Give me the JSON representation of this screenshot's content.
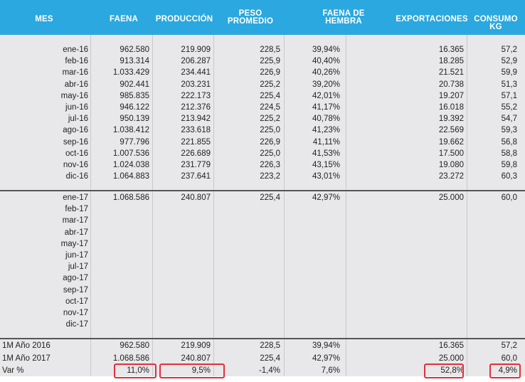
{
  "headers": {
    "mes": "MES",
    "faena": "FAENA",
    "produccion": "PRODUCCIÓN",
    "peso": [
      "PESO",
      "PROMEDIO"
    ],
    "hembra": [
      "FAENA DE",
      "HEMBRA"
    ],
    "exportaciones": "EXPORTACIONES",
    "consumo": [
      "CONSUMO",
      "KG"
    ]
  },
  "rows2016": [
    [
      "ene-16",
      "962.580",
      "219.909",
      "228,5",
      "39,94%",
      "16.365",
      "57,2"
    ],
    [
      "feb-16",
      "913.314",
      "206.287",
      "225,9",
      "40,40%",
      "18.285",
      "52,9"
    ],
    [
      "mar-16",
      "1.033.429",
      "234.441",
      "226,9",
      "40,26%",
      "21.521",
      "59,9"
    ],
    [
      "abr-16",
      "902.441",
      "203.231",
      "225,2",
      "39,20%",
      "20.738",
      "51,3"
    ],
    [
      "may-16",
      "985.835",
      "222.173",
      "225,4",
      "42,01%",
      "19.207",
      "57,1"
    ],
    [
      "jun-16",
      "946.122",
      "212.376",
      "224,5",
      "41,17%",
      "16.018",
      "55,2"
    ],
    [
      "jul-16",
      "950.139",
      "213.942",
      "225,2",
      "40,78%",
      "19.392",
      "54,7"
    ],
    [
      "ago-16",
      "1.038.412",
      "233.618",
      "225,0",
      "41,23%",
      "22.569",
      "59,3"
    ],
    [
      "sep-16",
      "977.796",
      "221.855",
      "226,9",
      "41,11%",
      "19.662",
      "56,8"
    ],
    [
      "oct-16",
      "1.007.536",
      "226.689",
      "225,0",
      "41,53%",
      "17.500",
      "58,8"
    ],
    [
      "nov-16",
      "1.024.038",
      "231.779",
      "226,3",
      "43,15%",
      "19.080",
      "59,8"
    ],
    [
      "dic-16",
      "1.064.883",
      "237.641",
      "223,2",
      "43,01%",
      "23.272",
      "60,3"
    ]
  ],
  "rows2017": [
    [
      "ene-17",
      "1.068.586",
      "240.807",
      "225,4",
      "42,97%",
      "25.000",
      "60,0"
    ],
    [
      "feb-17",
      "",
      "",
      "",
      "",
      "",
      ""
    ],
    [
      "mar-17",
      "",
      "",
      "",
      "",
      "",
      ""
    ],
    [
      "abr-17",
      "",
      "",
      "",
      "",
      "",
      ""
    ],
    [
      "may-17",
      "",
      "",
      "",
      "",
      "",
      ""
    ],
    [
      "jun-17",
      "",
      "",
      "",
      "",
      "",
      ""
    ],
    [
      "jul-17",
      "",
      "",
      "",
      "",
      "",
      ""
    ],
    [
      "ago-17",
      "",
      "",
      "",
      "",
      "",
      ""
    ],
    [
      "sep-17",
      "",
      "",
      "",
      "",
      "",
      ""
    ],
    [
      "oct-17",
      "",
      "",
      "",
      "",
      "",
      ""
    ],
    [
      "nov-17",
      "",
      "",
      "",
      "",
      "",
      ""
    ],
    [
      "dic-17",
      "",
      "",
      "",
      "",
      "",
      ""
    ]
  ],
  "summary": [
    [
      "1M Año 2016",
      "962.580",
      "219.909",
      "228,5",
      "39,94%",
      "16.365",
      "57,2"
    ],
    [
      "1M Año 2017",
      "1.068.586",
      "240.807",
      "225,4",
      "42,97%",
      "25.000",
      "60,0"
    ],
    [
      "Var %",
      "11,0%",
      "9,5%",
      "-1,4%",
      "7,6%",
      "52,8%",
      "4,9%"
    ]
  ],
  "highlight_color": "#e0303a",
  "header_color": "#2aa8df"
}
